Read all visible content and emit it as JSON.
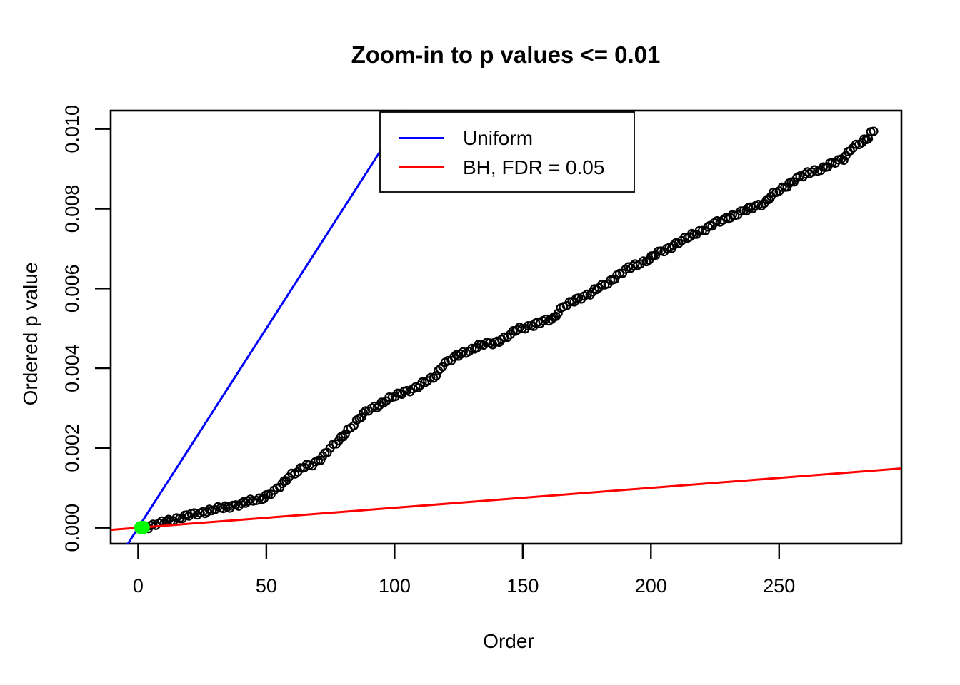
{
  "title": "Zoom-in to p values <= 0.01",
  "axes": {
    "x": {
      "label": "Order",
      "tick_values": [
        0,
        50,
        100,
        150,
        200,
        250
      ],
      "tick_labels": [
        "0",
        "50",
        "100",
        "150",
        "200",
        "250"
      ]
    },
    "y": {
      "label": "Ordered p value",
      "tick_values": [
        0.0,
        0.002,
        0.004,
        0.006,
        0.008,
        0.01
      ],
      "tick_labels": [
        "0.000",
        "0.002",
        "0.004",
        "0.006",
        "0.008",
        "0.010"
      ]
    }
  },
  "legend": {
    "items": [
      {
        "label": "Uniform",
        "color": "#0000FF"
      },
      {
        "label": "BH, FDR = 0.05",
        "color": "#FF0000"
      }
    ]
  },
  "colors": {
    "points": "#000000",
    "uniform_line": "#0000FF",
    "bh_line": "#FF0000",
    "significant_points": "#00FF00",
    "background": "#FFFFFF"
  },
  "chart_data": {
    "type": "scatter",
    "title": "Zoom-in to p values <= 0.01",
    "xlabel": "Order",
    "ylabel": "Ordered p value",
    "xlim": [
      -10.7,
      297.7
    ],
    "ylim": [
      -0.0004,
      0.01046
    ],
    "grid": false,
    "legend_position": "top-center-inside",
    "n_points": 287,
    "series": [
      {
        "name": "ordered-p-values",
        "marker": "open-circle",
        "color": "#000000",
        "sampling": "landmark points of the dense ordered p-value curve; one circle per integer order 3..287 lies on this polyline",
        "points": [
          [
            3,
            2e-05
          ],
          [
            4,
            3e-05
          ],
          [
            6,
            6e-05
          ],
          [
            8,
            0.0001
          ],
          [
            11,
            0.00016
          ],
          [
            15,
            0.00023
          ],
          [
            20,
            0.00031
          ],
          [
            25,
            0.00039
          ],
          [
            30,
            0.00046
          ],
          [
            36,
            0.00054
          ],
          [
            42,
            0.00063
          ],
          [
            48,
            0.00074
          ],
          [
            53,
            0.0009
          ],
          [
            57,
            0.00115
          ],
          [
            60,
            0.00135
          ],
          [
            64,
            0.0015
          ],
          [
            68,
            0.00158
          ],
          [
            72,
            0.0018
          ],
          [
            76,
            0.00205
          ],
          [
            80,
            0.0023
          ],
          [
            85,
            0.00268
          ],
          [
            90,
            0.00295
          ],
          [
            95,
            0.00313
          ],
          [
            100,
            0.0033
          ],
          [
            105,
            0.00344
          ],
          [
            110,
            0.00356
          ],
          [
            115,
            0.00377
          ],
          [
            119,
            0.00408
          ],
          [
            124,
            0.0043
          ],
          [
            129,
            0.00445
          ],
          [
            134,
            0.00458
          ],
          [
            139,
            0.00465
          ],
          [
            143,
            0.00475
          ],
          [
            148,
            0.00498
          ],
          [
            153,
            0.00507
          ],
          [
            157,
            0.00514
          ],
          [
            162,
            0.00527
          ],
          [
            166,
            0.00555
          ],
          [
            171,
            0.00572
          ],
          [
            176,
            0.00588
          ],
          [
            181,
            0.00605
          ],
          [
            186,
            0.00628
          ],
          [
            191,
            0.0065
          ],
          [
            197,
            0.00667
          ],
          [
            202,
            0.00685
          ],
          [
            207,
            0.00702
          ],
          [
            212,
            0.0072
          ],
          [
            216,
            0.00733
          ],
          [
            221,
            0.0075
          ],
          [
            226,
            0.00765
          ],
          [
            230,
            0.00778
          ],
          [
            235,
            0.0079
          ],
          [
            239,
            0.00802
          ],
          [
            244,
            0.00815
          ],
          [
            248,
            0.00836
          ],
          [
            252,
            0.00855
          ],
          [
            257,
            0.00876
          ],
          [
            261,
            0.00888
          ],
          [
            266,
            0.009
          ],
          [
            270,
            0.0091
          ],
          [
            275,
            0.00926
          ],
          [
            278,
            0.0095
          ],
          [
            281,
            0.00962
          ],
          [
            284,
            0.00973
          ],
          [
            285,
            0.00978
          ],
          [
            286,
            0.0099
          ],
          [
            287,
            0.00995
          ]
        ]
      },
      {
        "name": "bh-significant-points",
        "marker": "filled-circle",
        "color": "#00FF00",
        "points": [
          [
            1,
            5e-06
          ],
          [
            2,
            8e-06
          ]
        ]
      }
    ],
    "lines": [
      {
        "name": "Uniform",
        "color": "#0000FF",
        "slope": 0.0001,
        "intercept": 0
      },
      {
        "name": "BH, FDR = 0.05",
        "color": "#FF0000",
        "slope": 5e-06,
        "intercept": 0
      }
    ]
  }
}
